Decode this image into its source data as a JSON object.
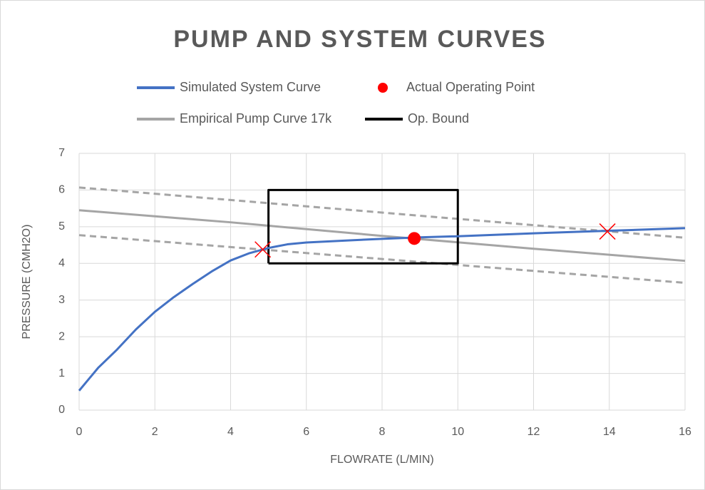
{
  "chart_data": {
    "type": "line",
    "title": "PUMP AND SYSTEM CURVES",
    "x_label": "FLOWRATE (L/MIN)",
    "y_label": "PRESSURE (CMH2O)",
    "xlim": [
      0,
      16
    ],
    "xticks": [
      0,
      2,
      4,
      6,
      8,
      10,
      12,
      14,
      16
    ],
    "ylim": [
      0,
      7
    ],
    "yticks": [
      0,
      1,
      2,
      3,
      4,
      5,
      6,
      7
    ],
    "grid": true,
    "series": [
      {
        "name": "Simulated System Curve",
        "type": "line",
        "color": "#4472c4",
        "x": [
          0,
          0.5,
          1,
          1.5,
          2,
          2.5,
          3,
          3.5,
          4,
          4.5,
          5,
          5.5,
          6,
          7,
          8,
          9,
          10,
          12,
          14,
          16
        ],
        "values": [
          0.53,
          1.15,
          1.65,
          2.2,
          2.68,
          3.08,
          3.44,
          3.78,
          4.08,
          4.28,
          4.42,
          4.52,
          4.57,
          4.62,
          4.67,
          4.71,
          4.74,
          4.82,
          4.89,
          4.96
        ]
      },
      {
        "name": "Actual Operating Point",
        "type": "scatter",
        "marker": "circle",
        "color": "#ff0000",
        "x": [
          8.85
        ],
        "values": [
          4.68
        ]
      },
      {
        "name": "Empirical Pump Curve 17k",
        "type": "line",
        "color": "#a5a5a5",
        "x": [
          0,
          4,
          8,
          12,
          16
        ],
        "values": [
          5.45,
          5.12,
          4.75,
          4.4,
          4.07
        ]
      },
      {
        "name": "Op. Bound",
        "type": "line",
        "color": "#000000",
        "x": [
          5,
          10,
          10,
          5,
          5
        ],
        "values": [
          4,
          4,
          6,
          6,
          4
        ]
      },
      {
        "type": "line",
        "dash": true,
        "color": "#a5a5a5",
        "x": [
          0,
          16
        ],
        "values": [
          6.07,
          4.7
        ]
      },
      {
        "type": "line",
        "dash": true,
        "color": "#a5a5a5",
        "x": [
          0,
          16
        ],
        "values": [
          4.77,
          3.47
        ]
      },
      {
        "type": "scatter",
        "marker": "x",
        "color": "#ff0000",
        "x": [
          4.85,
          13.95
        ],
        "values": [
          4.38,
          4.87
        ]
      }
    ]
  }
}
